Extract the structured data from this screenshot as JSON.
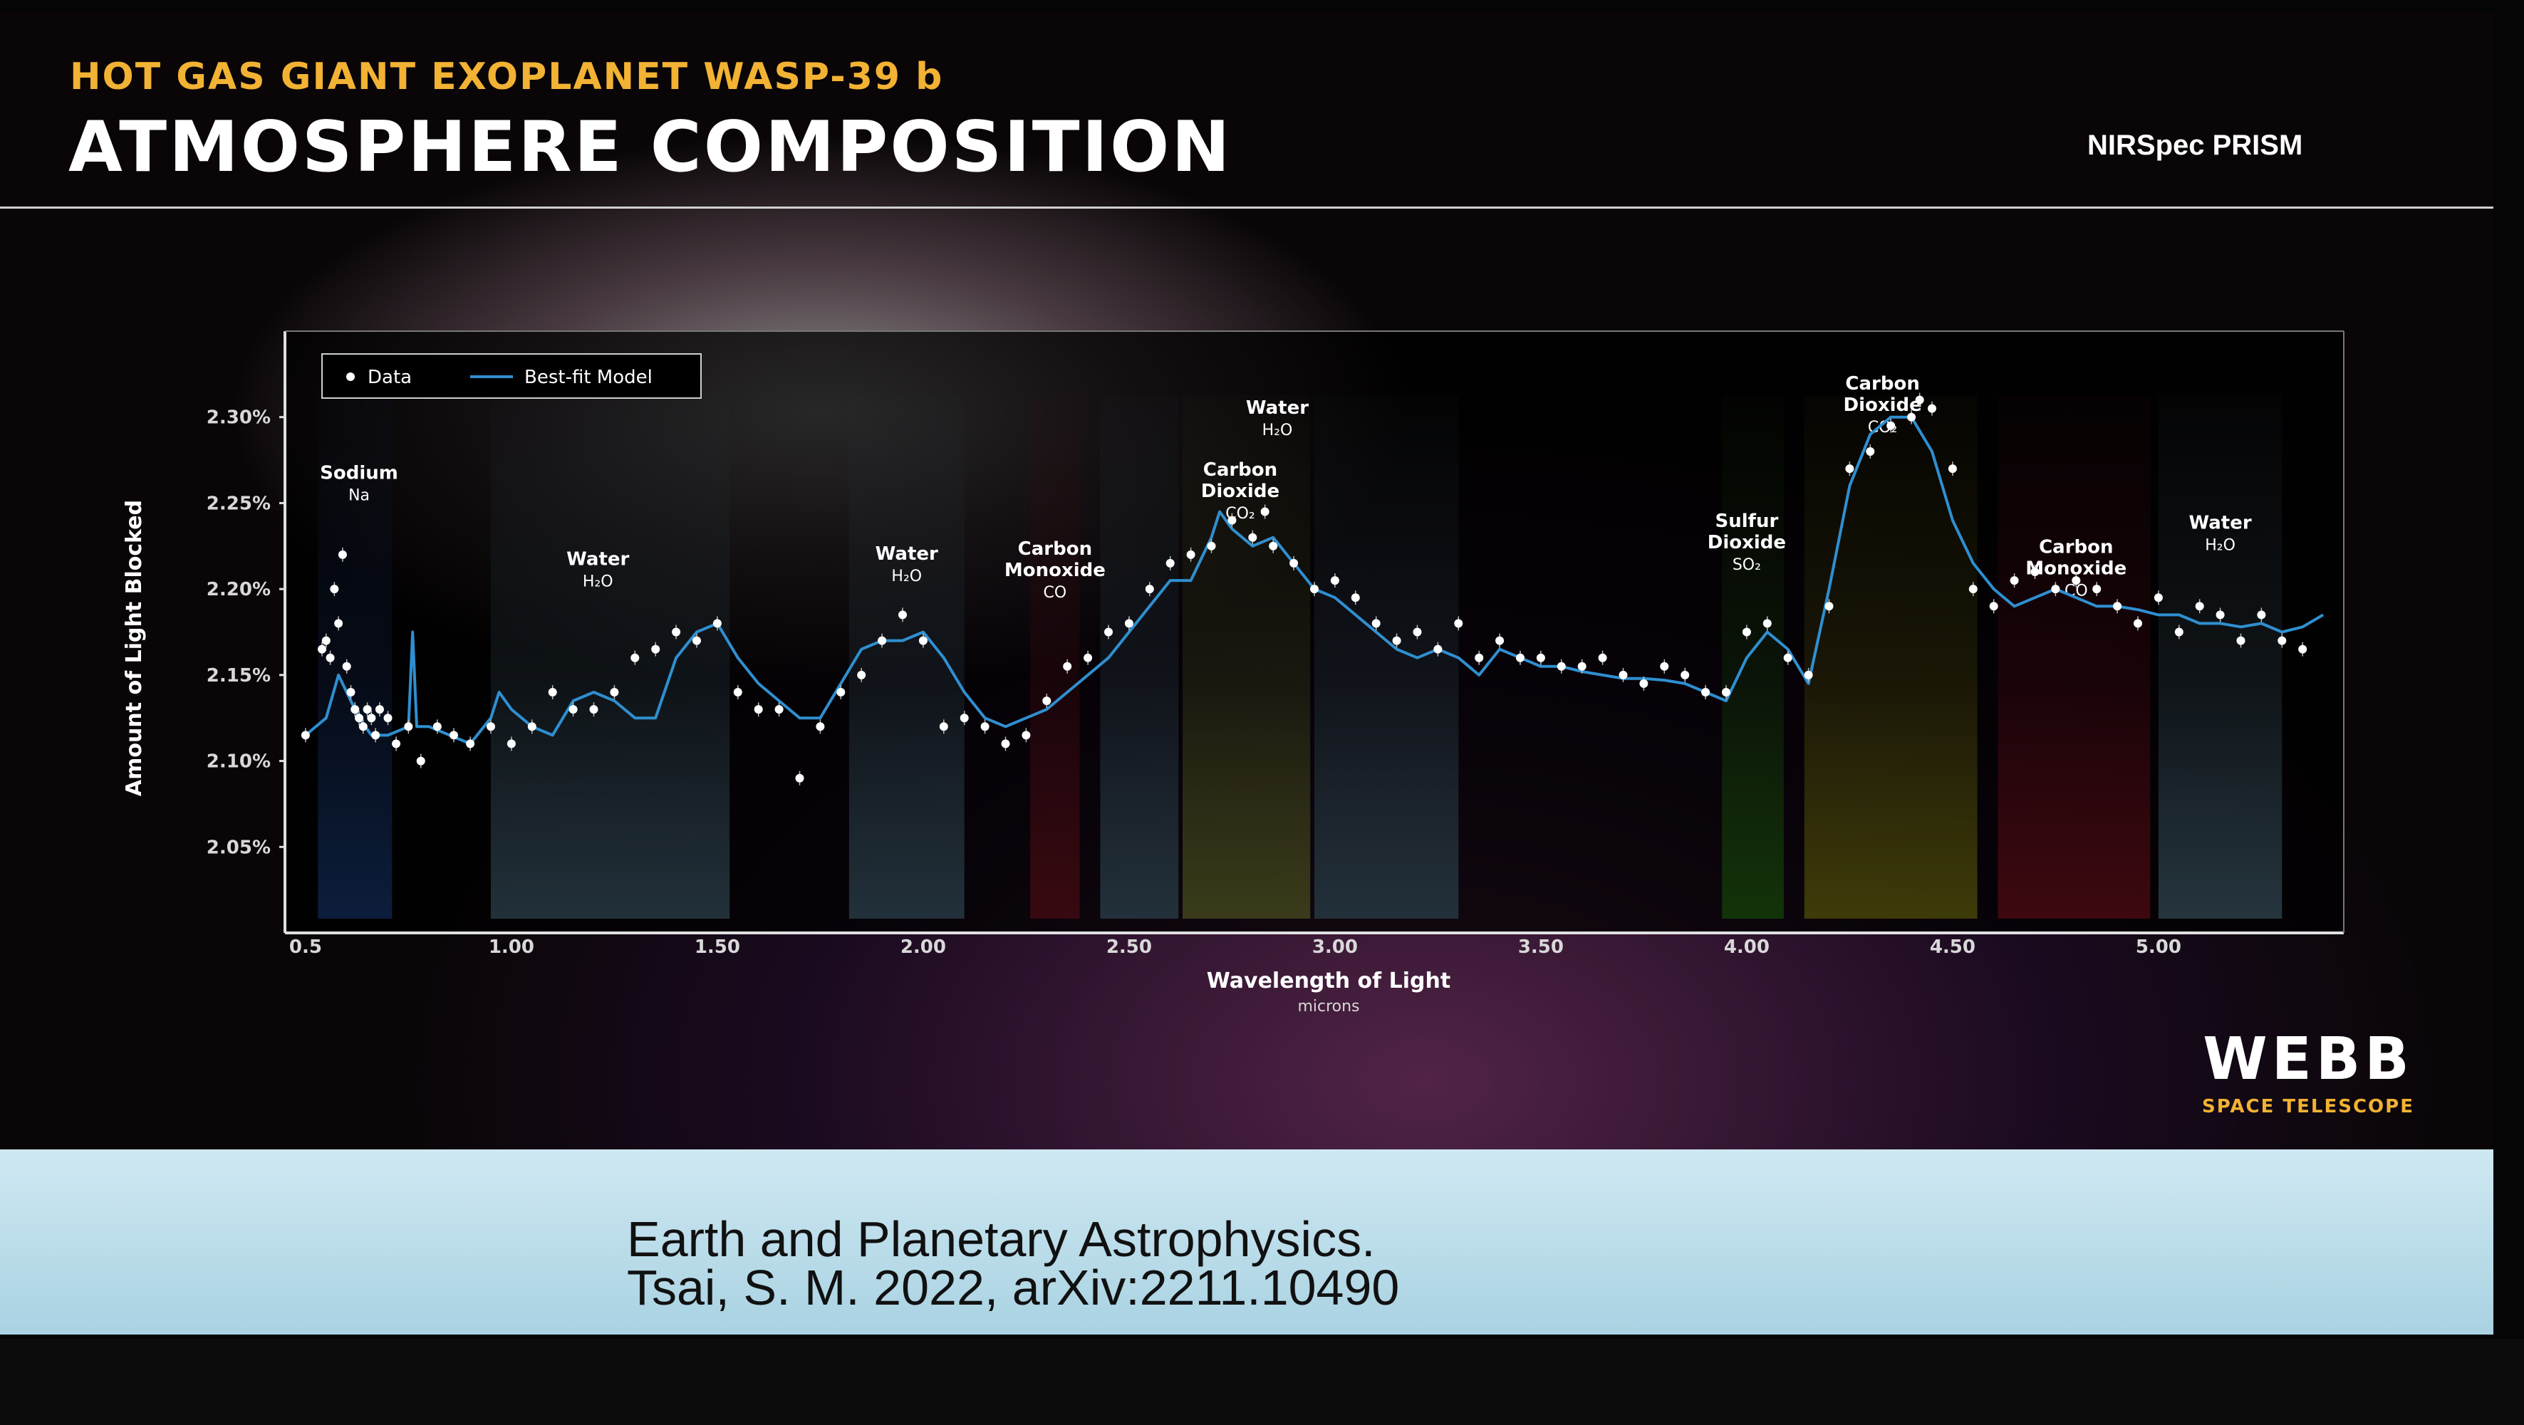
{
  "header": {
    "subtitle": "HOT GAS GIANT EXOPLANET WASP-39 b",
    "title": "ATMOSPHERE COMPOSITION",
    "instrument": "NIRSpec PRISM"
  },
  "logo": {
    "main": "WEBB",
    "sub": "SPACE TELESCOPE"
  },
  "citation": {
    "line1": "Earth and Planetary Astrophysics.",
    "line2": "Tsai, S. M. 2022, arXiv:2211.10490"
  },
  "colors": {
    "accent": "#f2b233",
    "model": "#2f8fd0",
    "data": "#ffffff"
  },
  "chart_data": {
    "type": "scatter",
    "xlabel": "Wavelength of Light",
    "xunit": "microns",
    "ylabel": "Amount of Light Blocked",
    "xlim": [
      0.45,
      5.45
    ],
    "ylim": [
      2.0,
      2.35
    ],
    "xticks": [
      0.5,
      1.0,
      1.5,
      2.0,
      2.5,
      3.0,
      3.5,
      4.0,
      4.5,
      5.0
    ],
    "xtick_labels": [
      "0.5",
      "1.00",
      "1.50",
      "2.00",
      "2.50",
      "3.00",
      "3.50",
      "4.00",
      "4.50",
      "5.00"
    ],
    "yticks": [
      2.05,
      2.1,
      2.15,
      2.2,
      2.25,
      2.3
    ],
    "ytick_labels": [
      "2.05%",
      "2.10%",
      "2.15%",
      "2.20%",
      "2.25%",
      "2.30%"
    ],
    "legend": {
      "placement": "top-left",
      "entries": [
        "Data",
        "Best-fit Model"
      ]
    },
    "bands": [
      {
        "x0": 0.53,
        "x1": 0.71,
        "color": "#2f6fe0",
        "name": "Sodium",
        "formula": "Na",
        "lx": 0.63,
        "ly": 2.264
      },
      {
        "x0": 0.95,
        "x1": 1.53,
        "color": "#7fb7d8",
        "name": "Water",
        "formula": "H₂O",
        "lx": 1.21,
        "ly": 2.214
      },
      {
        "x0": 1.82,
        "x1": 2.1,
        "color": "#7fb7d8",
        "name": "Water",
        "formula": "H₂O",
        "lx": 1.96,
        "ly": 2.217
      },
      {
        "x0": 2.26,
        "x1": 2.38,
        "color": "#d0243a",
        "name": "Carbon Monoxide",
        "formula": "CO",
        "lx": 2.32,
        "ly": 2.22
      },
      {
        "x0": 2.43,
        "x1": 2.62,
        "color": "#7fb7d8",
        "name": "",
        "formula": ""
      },
      {
        "x0": 2.63,
        "x1": 2.94,
        "color": "#d8e060",
        "name": "Carbon Dioxide",
        "formula": "CO₂",
        "lx": 2.77,
        "ly": 2.266
      },
      {
        "x0": 2.95,
        "x1": 3.3,
        "color": "#7fb7d8",
        "name": "Water",
        "formula": "H₂O",
        "lx": 2.86,
        "ly": 2.302
      },
      {
        "x0": 3.94,
        "x1": 4.09,
        "color": "#44c020",
        "name": "Sulfur Dioxide",
        "formula": "SO₂",
        "lx": 4.0,
        "ly": 2.236
      },
      {
        "x0": 4.14,
        "x1": 4.56,
        "color": "#e8e020",
        "name": "Carbon Dioxide",
        "formula": "CO₂",
        "lx": 4.33,
        "ly": 2.316
      },
      {
        "x0": 4.61,
        "x1": 4.98,
        "color": "#e8203a",
        "name": "Carbon Monoxide",
        "formula": "CO",
        "lx": 4.8,
        "ly": 2.221
      },
      {
        "x0": 5.0,
        "x1": 5.3,
        "color": "#8cc8e8",
        "name": "Water",
        "formula": "H₂O",
        "lx": 5.15,
        "ly": 2.235
      }
    ],
    "series": [
      {
        "name": "Best-fit Model",
        "style": "line",
        "x": [
          0.5,
          0.55,
          0.58,
          0.6,
          0.63,
          0.66,
          0.7,
          0.75,
          0.76,
          0.77,
          0.8,
          0.85,
          0.9,
          0.95,
          0.97,
          1.0,
          1.05,
          1.1,
          1.15,
          1.2,
          1.25,
          1.3,
          1.35,
          1.4,
          1.45,
          1.5,
          1.55,
          1.6,
          1.65,
          1.7,
          1.75,
          1.8,
          1.85,
          1.9,
          1.95,
          2.0,
          2.05,
          2.1,
          2.15,
          2.2,
          2.25,
          2.3,
          2.35,
          2.4,
          2.45,
          2.5,
          2.55,
          2.6,
          2.65,
          2.7,
          2.72,
          2.75,
          2.8,
          2.85,
          2.9,
          2.95,
          3.0,
          3.05,
          3.1,
          3.15,
          3.2,
          3.25,
          3.3,
          3.35,
          3.4,
          3.45,
          3.5,
          3.55,
          3.6,
          3.65,
          3.7,
          3.75,
          3.8,
          3.85,
          3.9,
          3.95,
          4.0,
          4.05,
          4.1,
          4.15,
          4.2,
          4.25,
          4.3,
          4.35,
          4.4,
          4.45,
          4.5,
          4.55,
          4.6,
          4.65,
          4.7,
          4.75,
          4.8,
          4.85,
          4.9,
          4.95,
          5.0,
          5.05,
          5.1,
          5.15,
          5.2,
          5.25,
          5.3,
          5.35,
          5.4
        ],
        "y": [
          2.115,
          2.125,
          2.15,
          2.14,
          2.125,
          2.115,
          2.115,
          2.12,
          2.175,
          2.12,
          2.12,
          2.115,
          2.11,
          2.125,
          2.14,
          2.13,
          2.12,
          2.115,
          2.135,
          2.14,
          2.135,
          2.125,
          2.125,
          2.16,
          2.175,
          2.18,
          2.16,
          2.145,
          2.135,
          2.125,
          2.125,
          2.145,
          2.165,
          2.17,
          2.17,
          2.175,
          2.16,
          2.14,
          2.125,
          2.12,
          2.125,
          2.13,
          2.14,
          2.15,
          2.16,
          2.175,
          2.19,
          2.205,
          2.205,
          2.23,
          2.245,
          2.235,
          2.225,
          2.23,
          2.215,
          2.2,
          2.195,
          2.185,
          2.175,
          2.165,
          2.16,
          2.165,
          2.16,
          2.15,
          2.165,
          2.16,
          2.155,
          2.155,
          2.152,
          2.15,
          2.148,
          2.148,
          2.147,
          2.145,
          2.14,
          2.135,
          2.16,
          2.175,
          2.165,
          2.145,
          2.2,
          2.26,
          2.29,
          2.3,
          2.3,
          2.28,
          2.24,
          2.215,
          2.2,
          2.19,
          2.195,
          2.2,
          2.195,
          2.19,
          2.19,
          2.188,
          2.185,
          2.185,
          2.18,
          2.18,
          2.178,
          2.18,
          2.175,
          2.178,
          2.185
        ]
      },
      {
        "name": "Data",
        "style": "points",
        "x": [
          0.5,
          0.54,
          0.55,
          0.56,
          0.57,
          0.58,
          0.59,
          0.6,
          0.61,
          0.62,
          0.63,
          0.64,
          0.65,
          0.66,
          0.67,
          0.68,
          0.7,
          0.72,
          0.75,
          0.78,
          0.82,
          0.86,
          0.9,
          0.95,
          1.0,
          1.05,
          1.1,
          1.15,
          1.2,
          1.25,
          1.3,
          1.35,
          1.4,
          1.45,
          1.5,
          1.55,
          1.6,
          1.65,
          1.7,
          1.75,
          1.8,
          1.85,
          1.9,
          1.95,
          2.0,
          2.05,
          2.1,
          2.15,
          2.2,
          2.25,
          2.3,
          2.35,
          2.4,
          2.45,
          2.5,
          2.55,
          2.6,
          2.65,
          2.7,
          2.75,
          2.8,
          2.83,
          2.85,
          2.9,
          2.95,
          3.0,
          3.05,
          3.1,
          3.15,
          3.2,
          3.25,
          3.3,
          3.35,
          3.4,
          3.45,
          3.5,
          3.55,
          3.6,
          3.65,
          3.7,
          3.75,
          3.8,
          3.85,
          3.9,
          3.95,
          4.0,
          4.05,
          4.1,
          4.15,
          4.2,
          4.25,
          4.3,
          4.35,
          4.4,
          4.42,
          4.45,
          4.5,
          4.55,
          4.6,
          4.65,
          4.7,
          4.75,
          4.8,
          4.85,
          4.9,
          4.95,
          5.0,
          5.05,
          5.1,
          5.15,
          5.2,
          5.25,
          5.3,
          5.35
        ],
        "y": [
          2.115,
          2.165,
          2.17,
          2.16,
          2.2,
          2.18,
          2.22,
          2.155,
          2.14,
          2.13,
          2.125,
          2.12,
          2.13,
          2.125,
          2.115,
          2.13,
          2.125,
          2.11,
          2.12,
          2.1,
          2.12,
          2.115,
          2.11,
          2.12,
          2.11,
          2.12,
          2.14,
          2.13,
          2.13,
          2.14,
          2.16,
          2.165,
          2.175,
          2.17,
          2.18,
          2.14,
          2.13,
          2.13,
          2.09,
          2.12,
          2.14,
          2.15,
          2.17,
          2.185,
          2.17,
          2.12,
          2.125,
          2.12,
          2.11,
          2.115,
          2.135,
          2.155,
          2.16,
          2.175,
          2.18,
          2.2,
          2.215,
          2.22,
          2.225,
          2.24,
          2.23,
          2.245,
          2.225,
          2.215,
          2.2,
          2.205,
          2.195,
          2.18,
          2.17,
          2.175,
          2.165,
          2.18,
          2.16,
          2.17,
          2.16,
          2.16,
          2.155,
          2.155,
          2.16,
          2.15,
          2.145,
          2.155,
          2.15,
          2.14,
          2.14,
          2.175,
          2.18,
          2.16,
          2.15,
          2.19,
          2.27,
          2.28,
          2.295,
          2.3,
          2.31,
          2.305,
          2.27,
          2.2,
          2.19,
          2.205,
          2.21,
          2.2,
          2.205,
          2.2,
          2.19,
          2.18,
          2.195,
          2.175,
          2.19,
          2.185,
          2.17,
          2.185,
          2.17,
          2.165
        ]
      }
    ]
  }
}
